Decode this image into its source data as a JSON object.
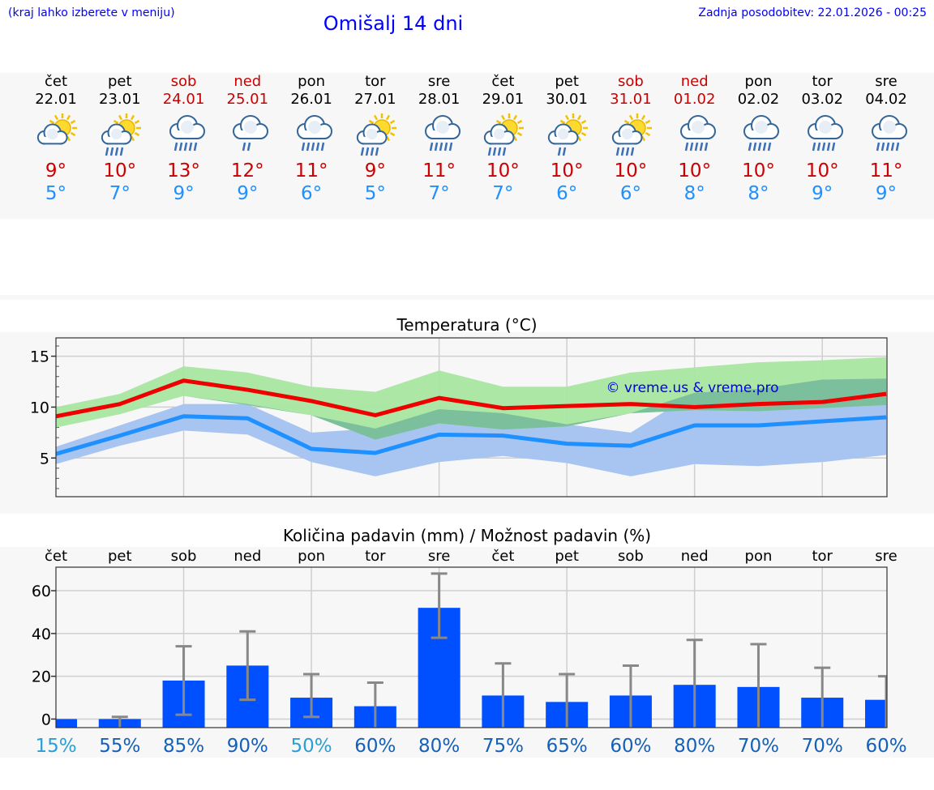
{
  "header": {
    "hint": "(kraj lahko izberete v meniju)",
    "title": "Omišalj 14 dni",
    "updated": "Zadnja posodobitev: 22.01.2026 - 00:25"
  },
  "days": [
    {
      "name": "čet",
      "date": "22.01",
      "weekend": false,
      "icon": "partly-cloudy-icon",
      "tmax": "9°",
      "tmin": "5°",
      "abbr": "čet",
      "prob": "15%"
    },
    {
      "name": "pet",
      "date": "23.01",
      "weekend": false,
      "icon": "sun-cloud-rain-icon",
      "tmax": "10°",
      "tmin": "7°",
      "abbr": "pet",
      "prob": "55%"
    },
    {
      "name": "sob",
      "date": "24.01",
      "weekend": true,
      "icon": "cloud-rain-icon",
      "tmax": "13°",
      "tmin": "9°",
      "abbr": "sob",
      "prob": "85%"
    },
    {
      "name": "ned",
      "date": "25.01",
      "weekend": true,
      "icon": "cloud-light-rain-icon",
      "tmax": "12°",
      "tmin": "9°",
      "abbr": "ned",
      "prob": "90%"
    },
    {
      "name": "pon",
      "date": "26.01",
      "weekend": false,
      "icon": "cloud-rain-icon",
      "tmax": "11°",
      "tmin": "6°",
      "abbr": "pon",
      "prob": "50%"
    },
    {
      "name": "tor",
      "date": "27.01",
      "weekend": false,
      "icon": "sun-cloud-rain-icon",
      "tmax": "9°",
      "tmin": "5°",
      "abbr": "tor",
      "prob": "60%"
    },
    {
      "name": "sre",
      "date": "28.01",
      "weekend": false,
      "icon": "cloud-rain-icon",
      "tmax": "11°",
      "tmin": "7°",
      "abbr": "sre",
      "prob": "80%"
    },
    {
      "name": "čet",
      "date": "29.01",
      "weekend": false,
      "icon": "sun-cloud-rain-icon",
      "tmax": "10°",
      "tmin": "7°",
      "abbr": "čet",
      "prob": "75%"
    },
    {
      "name": "pet",
      "date": "30.01",
      "weekend": false,
      "icon": "sun-cloud-light-rain-icon",
      "tmax": "10°",
      "tmin": "6°",
      "abbr": "pet",
      "prob": "65%"
    },
    {
      "name": "sob",
      "date": "31.01",
      "weekend": true,
      "icon": "sun-cloud-rain-icon",
      "tmax": "10°",
      "tmin": "6°",
      "abbr": "sob",
      "prob": "60%"
    },
    {
      "name": "ned",
      "date": "01.02",
      "weekend": true,
      "icon": "cloud-rain-icon",
      "tmax": "10°",
      "tmin": "8°",
      "abbr": "ned",
      "prob": "80%"
    },
    {
      "name": "pon",
      "date": "02.02",
      "weekend": false,
      "icon": "cloud-rain-icon",
      "tmax": "10°",
      "tmin": "8°",
      "abbr": "pon",
      "prob": "70%"
    },
    {
      "name": "tor",
      "date": "03.02",
      "weekend": false,
      "icon": "cloud-rain-icon",
      "tmax": "10°",
      "tmin": "9°",
      "abbr": "tor",
      "prob": "70%"
    },
    {
      "name": "sre",
      "date": "04.02",
      "weekend": false,
      "icon": "cloud-rain-icon",
      "tmax": "11°",
      "tmin": "9°",
      "abbr": "sre",
      "prob": "60%"
    }
  ],
  "colors": {
    "max_line": "#ee0000",
    "min_line": "#1e90ff",
    "max_band": "#a8e6a0",
    "min_band": "#a8c4f0",
    "overlap_band": "#7bbf9c",
    "bar": "#0050ff",
    "error_bar": "#888888",
    "prob_low": "#2a9fd6",
    "prob_high": "#1560b8"
  },
  "chart_data": [
    {
      "type": "line",
      "title": "Temperatura (°C)",
      "watermark": "© vreme.us & vreme.pro",
      "ylim": [
        1.2,
        16.8
      ],
      "yticks": [
        5,
        10,
        15
      ],
      "x": [
        "22.01",
        "23.01",
        "24.01",
        "25.01",
        "26.01",
        "27.01",
        "28.01",
        "29.01",
        "30.01",
        "31.01",
        "01.02",
        "02.02",
        "03.02",
        "04.02"
      ],
      "series": [
        {
          "name": "max",
          "values": [
            9.1,
            10.3,
            12.6,
            11.7,
            10.6,
            9.2,
            10.9,
            9.9,
            10.1,
            10.3,
            10.0,
            10.3,
            10.5,
            11.3
          ],
          "band_low": [
            8.0,
            9.3,
            11.1,
            10.2,
            9.2,
            6.8,
            8.4,
            7.8,
            8.1,
            9.4,
            9.7,
            9.6,
            9.9,
            10.2
          ],
          "band_high": [
            10.0,
            11.3,
            14.0,
            13.4,
            12.0,
            11.5,
            13.6,
            12.0,
            12.0,
            13.4,
            13.9,
            14.4,
            14.6,
            14.9
          ]
        },
        {
          "name": "min",
          "values": [
            5.4,
            7.2,
            9.1,
            8.9,
            5.9,
            5.5,
            7.3,
            7.2,
            6.4,
            6.2,
            8.2,
            8.2,
            8.6,
            9.0
          ],
          "band_low": [
            4.4,
            6.2,
            7.7,
            7.3,
            4.6,
            3.2,
            4.6,
            5.2,
            4.5,
            3.2,
            4.4,
            4.2,
            4.6,
            5.3
          ],
          "band_high": [
            6.1,
            8.2,
            10.3,
            10.3,
            7.5,
            7.9,
            9.8,
            9.4,
            8.3,
            7.5,
            11.4,
            11.8,
            12.7,
            12.8
          ]
        }
      ]
    },
    {
      "type": "bar",
      "title": "Količina padavin (mm) / Možnost padavin (%)",
      "ylim": [
        -4,
        71
      ],
      "yticks": [
        0,
        20,
        40,
        60
      ],
      "categories": [
        "čet",
        "pet",
        "sob",
        "ned",
        "pon",
        "tor",
        "sre",
        "čet",
        "pet",
        "sob",
        "ned",
        "pon",
        "tor",
        "sre"
      ],
      "values": [
        0,
        0,
        18,
        25,
        10,
        6,
        52,
        11,
        8,
        11,
        16,
        15,
        10,
        9
      ],
      "err_low": [
        0,
        0,
        2,
        9,
        1,
        0,
        38,
        0,
        0,
        0,
        0,
        0,
        0,
        0
      ],
      "err_high": [
        0,
        1,
        34,
        41,
        21,
        17,
        68,
        26,
        21,
        25,
        37,
        35,
        24,
        20
      ],
      "probability": [
        "15%",
        "55%",
        "85%",
        "90%",
        "50%",
        "60%",
        "80%",
        "75%",
        "65%",
        "60%",
        "80%",
        "70%",
        "70%",
        "60%"
      ]
    }
  ]
}
